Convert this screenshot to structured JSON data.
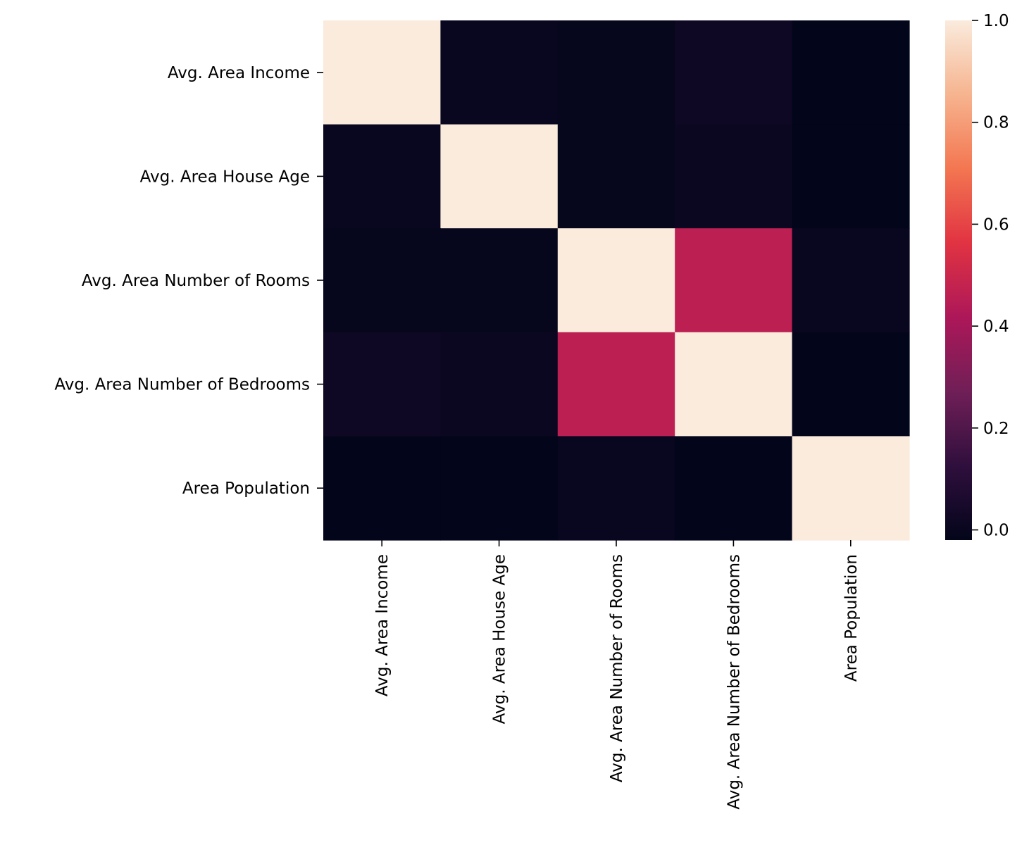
{
  "chart_data": {
    "type": "heatmap",
    "title": "",
    "xlabel": "",
    "ylabel": "",
    "x_categories": [
      "Avg. Area Income",
      "Avg. Area House Age",
      "Avg. Area Number of Rooms",
      "Avg. Area Number of Bedrooms",
      "Area Population"
    ],
    "y_categories": [
      "Avg. Area Income",
      "Avg. Area House Age",
      "Avg. Area Number of Rooms",
      "Avg. Area Number of Bedrooms",
      "Area Population"
    ],
    "values": [
      [
        1.0,
        0.0,
        -0.01,
        0.02,
        -0.02
      ],
      [
        0.0,
        1.0,
        -0.01,
        0.01,
        -0.02
      ],
      [
        -0.01,
        -0.01,
        1.0,
        0.46,
        0.0
      ],
      [
        0.02,
        0.01,
        0.46,
        1.0,
        -0.02
      ],
      [
        -0.02,
        -0.02,
        0.0,
        -0.02,
        1.0
      ]
    ],
    "colorbar": {
      "min": -0.02,
      "max": 1.0,
      "ticks": [
        0.0,
        0.2,
        0.4,
        0.6,
        0.8,
        1.0
      ],
      "tick_labels": [
        "0.0",
        "0.2",
        "0.4",
        "0.6",
        "0.8",
        "1.0"
      ],
      "colormap": "rocket",
      "stops": [
        "#03051a",
        "#2f0f3d",
        "#701f57",
        "#ad1759",
        "#e13342",
        "#f37651",
        "#f6b48f",
        "#faebdd"
      ]
    },
    "grid": false,
    "legend": "colorbar-right"
  }
}
